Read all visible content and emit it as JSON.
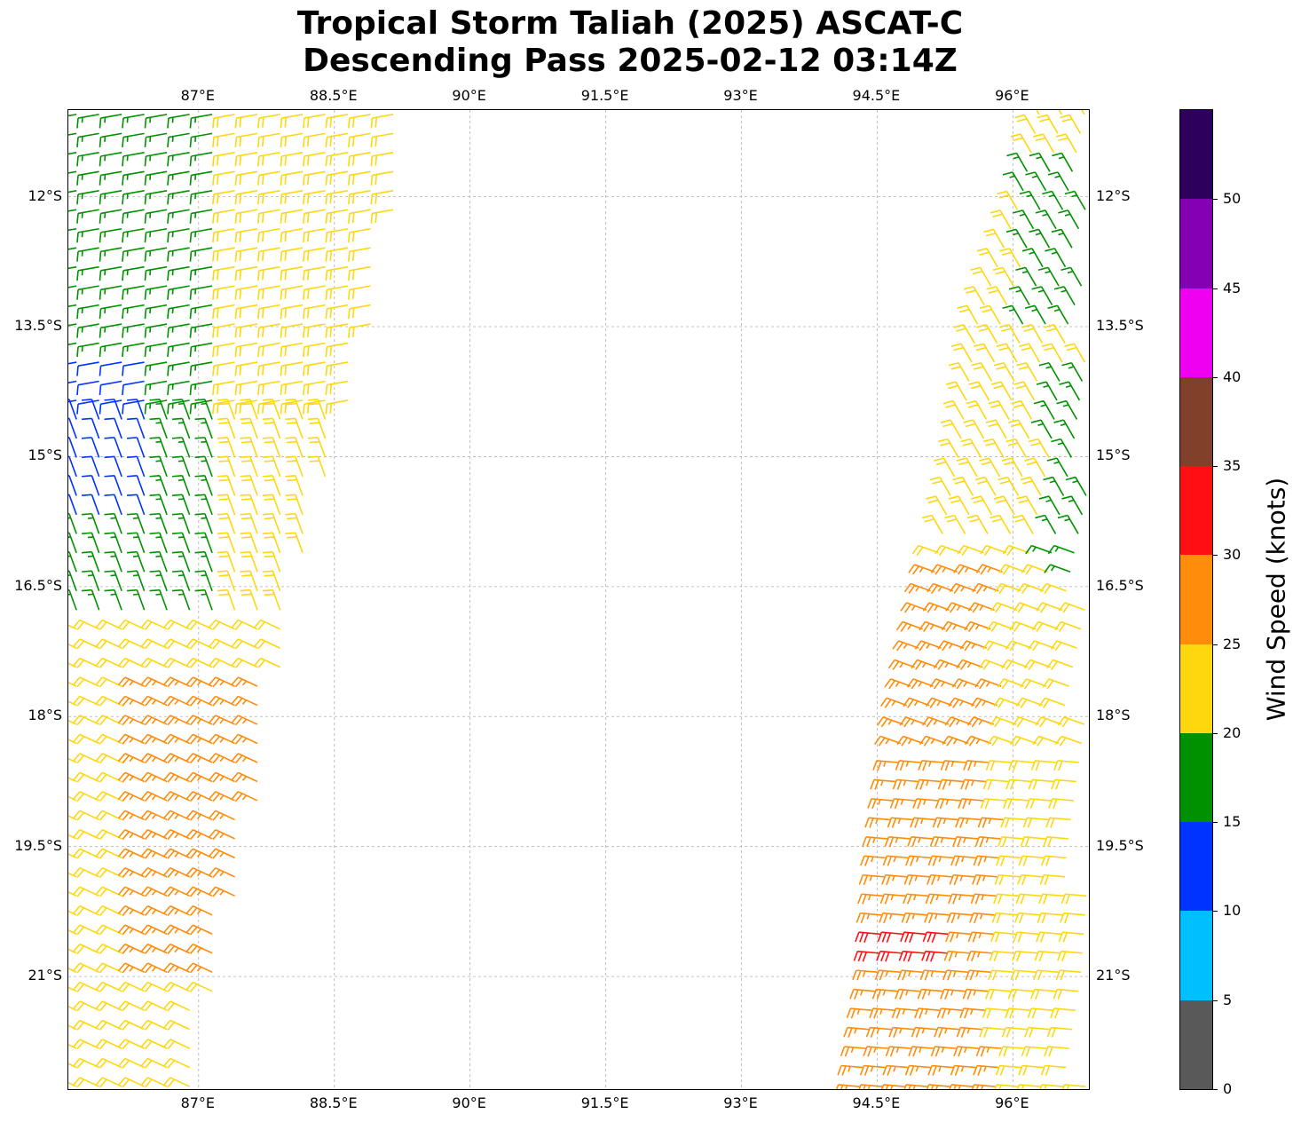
{
  "title": {
    "line1": "Tropical Storm Taliah (2025) ASCAT-C",
    "line2": "Descending Pass 2025-02-12 03:14Z"
  },
  "map": {
    "lon_range": [
      85.56,
      96.84
    ],
    "lat_range": [
      -22.3,
      -11.0
    ],
    "lon_ticks": [
      {
        "value": 87.0,
        "label": "87°E"
      },
      {
        "value": 88.5,
        "label": "88.5°E"
      },
      {
        "value": 90.0,
        "label": "90°E"
      },
      {
        "value": 91.5,
        "label": "91.5°E"
      },
      {
        "value": 93.0,
        "label": "93°E"
      },
      {
        "value": 94.5,
        "label": "94.5°E"
      },
      {
        "value": 96.0,
        "label": "96°E"
      }
    ],
    "lat_ticks": [
      {
        "value": -12.0,
        "label": "12°S"
      },
      {
        "value": -13.5,
        "label": "13.5°S"
      },
      {
        "value": -15.0,
        "label": "15°S"
      },
      {
        "value": -16.5,
        "label": "16.5°S"
      },
      {
        "value": -18.0,
        "label": "18°S"
      },
      {
        "value": -19.5,
        "label": "19.5°S"
      },
      {
        "value": -21.0,
        "label": "21°S"
      }
    ],
    "grid": true,
    "grid_color": "#b0b0b0"
  },
  "wind_swaths": {
    "west": {
      "lat_range": [
        -22.3,
        -11.0
      ],
      "lon_left": [
        85.6,
        85.6
      ],
      "lon_right_by_lat": [
        [
          -11.0,
          89.4
        ],
        [
          -13.5,
          88.9
        ],
        [
          -15.0,
          88.5
        ],
        [
          -16.5,
          88.1
        ],
        [
          -18.0,
          87.8
        ],
        [
          -19.5,
          87.6
        ],
        [
          -21.0,
          87.2
        ],
        [
          -22.3,
          87.0
        ]
      ],
      "regions": [
        {
          "lat": [
            -11.0,
            -16.8
          ],
          "lon": [
            85.6,
            87.2
          ],
          "speed": 17
        },
        {
          "lat": [
            -13.7,
            -15.8
          ],
          "lon": [
            85.6,
            86.5
          ],
          "speed": 12
        },
        {
          "lat": [
            -17.5,
            -21.0
          ],
          "lon": [
            86.2,
            87.8
          ],
          "speed": 27
        }
      ],
      "default_speed": 22
    },
    "east": {
      "lat_range": [
        -22.3,
        -11.0
      ],
      "lon_left_by_lat": [
        [
          -11.0,
          96.3
        ],
        [
          -12.0,
          96.1
        ],
        [
          -13.5,
          95.6
        ],
        [
          -15.0,
          95.4
        ],
        [
          -16.5,
          95.1
        ],
        [
          -18.0,
          94.8
        ],
        [
          -19.5,
          94.6
        ],
        [
          -21.0,
          94.5
        ],
        [
          -22.3,
          94.3
        ]
      ],
      "lon_right": [
        96.84,
        96.84
      ],
      "regions": [
        {
          "lat": [
            -11.5,
            -13.5
          ],
          "lon": [
            96.1,
            96.84
          ],
          "speed": 17
        },
        {
          "lat": [
            -14.0,
            -16.5
          ],
          "lon": [
            96.4,
            96.84
          ],
          "speed": 17
        },
        {
          "lat": [
            -16.3,
            -22.3
          ],
          "lon": [
            94.3,
            95.9
          ],
          "speed": 27
        },
        {
          "lat": [
            -20.3,
            -20.8
          ],
          "lon": [
            94.5,
            95.3
          ],
          "speed": 32
        }
      ],
      "default_speed": 22
    }
  },
  "colorbar": {
    "label": "Wind Speed (knots)",
    "ticks": [
      "0",
      "5",
      "10",
      "15",
      "20",
      "25",
      "30",
      "35",
      "40",
      "45",
      "50"
    ],
    "bins": [
      {
        "min": 0,
        "max": 5,
        "color": "#595959"
      },
      {
        "min": 5,
        "max": 10,
        "color": "#00bfff"
      },
      {
        "min": 10,
        "max": 15,
        "color": "#0033ff"
      },
      {
        "min": 15,
        "max": 20,
        "color": "#009100"
      },
      {
        "min": 20,
        "max": 25,
        "color": "#ffd70f"
      },
      {
        "min": 25,
        "max": 30,
        "color": "#ff8c0a"
      },
      {
        "min": 30,
        "max": 35,
        "color": "#ff0f14"
      },
      {
        "min": 35,
        "max": 40,
        "color": "#80402a"
      },
      {
        "min": 40,
        "max": 45,
        "color": "#f000f0"
      },
      {
        "min": 45,
        "max": 50,
        "color": "#8400b2"
      },
      {
        "min": 50,
        "max": 55,
        "color": "#2c005c"
      }
    ]
  }
}
